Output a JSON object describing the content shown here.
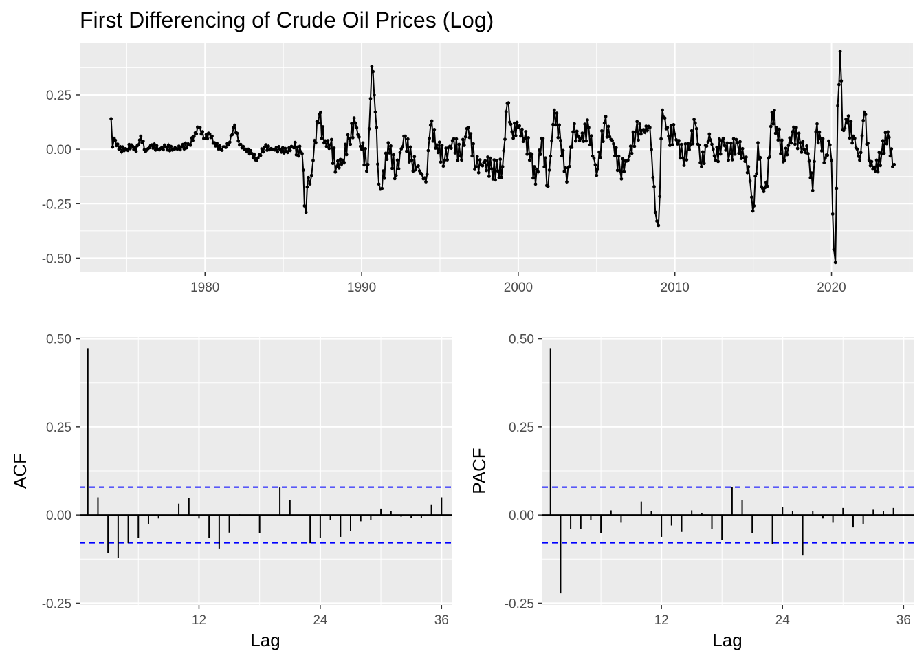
{
  "chart_data": [
    {
      "type": "line",
      "title": "First Differencing of Crude Oil Prices (Log)",
      "xlabel": "",
      "ylabel": "",
      "xlim": [
        1972.0,
        2025.2
      ],
      "ylim": [
        -0.565,
        0.49
      ],
      "x_ticks": [
        "1980",
        "1990",
        "2000",
        "2010",
        "2020"
      ],
      "x_tick_values": [
        1980,
        1990,
        2000,
        2010,
        2020
      ],
      "y_ticks": [
        "-0.50",
        "-0.25",
        "0.00",
        "0.25"
      ],
      "y_tick_values": [
        -0.5,
        -0.25,
        0.0,
        0.25
      ],
      "grid": true,
      "series_color": "#000000",
      "keypoints": [
        [
          1974.0,
          0.14
        ],
        [
          1974.1,
          0.01
        ],
        [
          1974.2,
          0.05
        ],
        [
          1974.5,
          0.0
        ],
        [
          1975.0,
          0.0
        ],
        [
          1975.3,
          0.02
        ],
        [
          1975.6,
          -0.01
        ],
        [
          1975.9,
          0.06
        ],
        [
          1976.2,
          -0.01
        ],
        [
          1976.6,
          0.02
        ],
        [
          1977.0,
          0.0
        ],
        [
          1977.5,
          0.01
        ],
        [
          1978.0,
          0.0
        ],
        [
          1978.5,
          0.01
        ],
        [
          1979.0,
          0.02
        ],
        [
          1979.3,
          0.06
        ],
        [
          1979.6,
          0.1
        ],
        [
          1980.0,
          0.05
        ],
        [
          1980.3,
          0.07
        ],
        [
          1980.6,
          0.03
        ],
        [
          1981.0,
          0.0
        ],
        [
          1981.5,
          0.02
        ],
        [
          1981.9,
          0.11
        ],
        [
          1982.2,
          0.02
        ],
        [
          1982.6,
          0.0
        ],
        [
          1983.0,
          -0.02
        ],
        [
          1983.3,
          -0.05
        ],
        [
          1983.8,
          0.01
        ],
        [
          1984.3,
          0.0
        ],
        [
          1984.8,
          0.0
        ],
        [
          1985.2,
          -0.01
        ],
        [
          1985.6,
          0.01
        ],
        [
          1985.9,
          0.01
        ],
        [
          1986.2,
          -0.02
        ],
        [
          1986.35,
          -0.26
        ],
        [
          1986.45,
          -0.29
        ],
        [
          1986.6,
          -0.13
        ],
        [
          1986.8,
          -0.12
        ],
        [
          1987.0,
          0.04
        ],
        [
          1987.3,
          0.16
        ],
        [
          1987.6,
          0.03
        ],
        [
          1988.0,
          0.02
        ],
        [
          1988.4,
          -0.08
        ],
        [
          1988.8,
          -0.05
        ],
        [
          1989.2,
          0.05
        ],
        [
          1989.6,
          0.12
        ],
        [
          1990.0,
          0.0
        ],
        [
          1990.4,
          -0.07
        ],
        [
          1990.65,
          0.38
        ],
        [
          1990.8,
          0.25
        ],
        [
          1990.95,
          0.1
        ],
        [
          1991.1,
          -0.16
        ],
        [
          1991.3,
          -0.18
        ],
        [
          1991.7,
          0.03
        ],
        [
          1992.2,
          -0.12
        ],
        [
          1992.7,
          0.06
        ],
        [
          1993.2,
          -0.05
        ],
        [
          1993.7,
          -0.1
        ],
        [
          1994.1,
          -0.15
        ],
        [
          1994.4,
          0.11
        ],
        [
          1994.8,
          0.02
        ],
        [
          1995.3,
          -0.05
        ],
        [
          1995.8,
          0.04
        ],
        [
          1996.3,
          -0.03
        ],
        [
          1996.8,
          0.1
        ],
        [
          1997.3,
          -0.08
        ],
        [
          1997.8,
          -0.06
        ],
        [
          1998.3,
          -0.09
        ],
        [
          1998.7,
          -0.1
        ],
        [
          1999.0,
          -0.08
        ],
        [
          1999.3,
          0.21
        ],
        [
          1999.6,
          0.08
        ],
        [
          2000.0,
          0.1
        ],
        [
          2000.4,
          0.05
        ],
        [
          2000.8,
          -0.02
        ],
        [
          2001.1,
          -0.16
        ],
        [
          2001.5,
          0.05
        ],
        [
          2001.9,
          -0.17
        ],
        [
          2002.3,
          0.18
        ],
        [
          2002.7,
          0.04
        ],
        [
          2003.1,
          -0.15
        ],
        [
          2003.5,
          0.08
        ],
        [
          2004.0,
          0.05
        ],
        [
          2004.5,
          0.1
        ],
        [
          2005.0,
          -0.12
        ],
        [
          2005.5,
          0.12
        ],
        [
          2006.0,
          0.04
        ],
        [
          2006.5,
          -0.1
        ],
        [
          2007.0,
          -0.05
        ],
        [
          2007.5,
          0.08
        ],
        [
          2008.0,
          0.09
        ],
        [
          2008.4,
          0.1
        ],
        [
          2008.6,
          -0.13
        ],
        [
          2008.75,
          -0.29
        ],
        [
          2008.85,
          -0.33
        ],
        [
          2008.95,
          -0.35
        ],
        [
          2009.2,
          0.18
        ],
        [
          2009.6,
          0.06
        ],
        [
          2010.0,
          0.07
        ],
        [
          2010.5,
          -0.04
        ],
        [
          2011.0,
          0.02
        ],
        [
          2011.3,
          0.12
        ],
        [
          2011.7,
          -0.08
        ],
        [
          2012.2,
          0.07
        ],
        [
          2012.6,
          -0.05
        ],
        [
          2013.0,
          0.04
        ],
        [
          2013.5,
          -0.02
        ],
        [
          2014.0,
          0.03
        ],
        [
          2014.4,
          -0.04
        ],
        [
          2014.7,
          -0.08
        ],
        [
          2014.9,
          -0.22
        ],
        [
          2015.05,
          -0.26
        ],
        [
          2015.3,
          0.03
        ],
        [
          2015.6,
          -0.18
        ],
        [
          2015.9,
          -0.17
        ],
        [
          2016.2,
          0.17
        ],
        [
          2016.5,
          0.1
        ],
        [
          2017.0,
          -0.05
        ],
        [
          2017.5,
          0.08
        ],
        [
          2018.0,
          0.03
        ],
        [
          2018.5,
          -0.02
        ],
        [
          2018.8,
          -0.19
        ],
        [
          2019.0,
          0.08
        ],
        [
          2019.3,
          0.05
        ],
        [
          2019.6,
          -0.04
        ],
        [
          2019.9,
          0.02
        ],
        [
          2020.0,
          -0.05
        ],
        [
          2020.15,
          -0.46
        ],
        [
          2020.25,
          -0.52
        ],
        [
          2020.4,
          0.2
        ],
        [
          2020.55,
          0.45
        ],
        [
          2020.7,
          0.09
        ],
        [
          2021.0,
          0.12
        ],
        [
          2021.4,
          0.06
        ],
        [
          2021.8,
          -0.05
        ],
        [
          2022.1,
          0.17
        ],
        [
          2022.4,
          -0.05
        ],
        [
          2022.8,
          -0.1
        ],
        [
          2023.2,
          -0.02
        ],
        [
          2023.6,
          0.08
        ],
        [
          2023.9,
          -0.08
        ],
        [
          2024.0,
          -0.07
        ]
      ]
    },
    {
      "type": "bar",
      "xlabel": "Lag",
      "ylabel": "ACF",
      "xlim": [
        0.2,
        37.0
      ],
      "ylim": [
        -0.255,
        0.505
      ],
      "x_ticks": [
        "12",
        "24",
        "36"
      ],
      "x_tick_values": [
        12,
        24,
        36
      ],
      "y_ticks": [
        "-0.25",
        "0.00",
        "0.25",
        "0.50"
      ],
      "y_tick_values": [
        -0.25,
        0.0,
        0.25,
        0.5
      ],
      "grid": true,
      "lags": [
        1,
        2,
        3,
        4,
        5,
        6,
        7,
        8,
        9,
        10,
        11,
        12,
        13,
        14,
        15,
        16,
        17,
        18,
        19,
        20,
        21,
        22,
        23,
        24,
        25,
        26,
        27,
        28,
        29,
        30,
        31,
        32,
        33,
        34,
        35,
        36
      ],
      "values": [
        0.473,
        0.05,
        -0.107,
        -0.122,
        -0.08,
        -0.065,
        -0.025,
        -0.01,
        -0.002,
        0.032,
        0.048,
        -0.01,
        -0.065,
        -0.095,
        -0.05,
        0.002,
        0.0,
        -0.052,
        0.0,
        0.078,
        0.042,
        -0.003,
        -0.08,
        -0.065,
        -0.015,
        -0.062,
        -0.045,
        -0.018,
        -0.015,
        0.018,
        0.012,
        -0.005,
        -0.008,
        -0.008,
        0.03,
        0.05
      ],
      "confidence_band": [
        -0.079,
        0.079
      ],
      "band_color": "#0000ff"
    },
    {
      "type": "bar",
      "xlabel": "Lag",
      "ylabel": "PACF",
      "xlim": [
        0.2,
        37.0
      ],
      "ylim": [
        -0.255,
        0.505
      ],
      "x_ticks": [
        "12",
        "24",
        "36"
      ],
      "x_tick_values": [
        12,
        24,
        36
      ],
      "y_ticks": [
        "-0.25",
        "0.00",
        "0.25",
        "0.50"
      ],
      "y_tick_values": [
        -0.25,
        0.0,
        0.25,
        0.5
      ],
      "grid": true,
      "lags": [
        1,
        2,
        3,
        4,
        5,
        6,
        7,
        8,
        9,
        10,
        11,
        12,
        13,
        14,
        15,
        16,
        17,
        18,
        19,
        20,
        21,
        22,
        23,
        24,
        25,
        26,
        27,
        28,
        29,
        30,
        31,
        32,
        33,
        34,
        35,
        36
      ],
      "values": [
        0.473,
        -0.222,
        -0.04,
        -0.04,
        -0.015,
        -0.052,
        0.013,
        -0.022,
        -0.003,
        0.038,
        0.01,
        -0.062,
        -0.03,
        -0.048,
        0.013,
        0.006,
        -0.04,
        -0.07,
        0.08,
        0.042,
        -0.052,
        -0.003,
        -0.082,
        0.022,
        0.01,
        -0.115,
        0.01,
        -0.01,
        -0.022,
        0.02,
        -0.035,
        -0.025,
        0.015,
        0.01,
        0.02,
        0.0
      ],
      "confidence_band": [
        -0.079,
        0.079
      ],
      "band_color": "#0000ff"
    }
  ]
}
